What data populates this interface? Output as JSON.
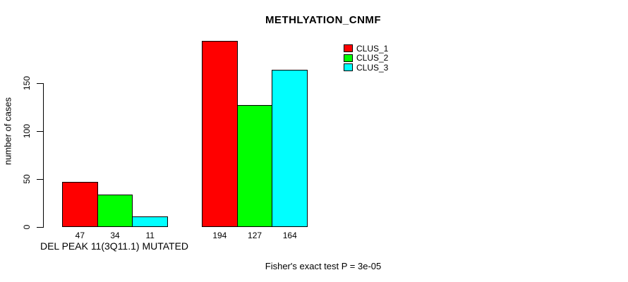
{
  "page": {
    "background_color": "#ffffff",
    "text_color": "#000000"
  },
  "chart_data": {
    "type": "bar",
    "title": "METHLYATION_CNMF",
    "ylabel": "number of cases",
    "xlabel": "",
    "ylim": [
      0,
      200
    ],
    "yticks": [
      0,
      50,
      100,
      150
    ],
    "grid": false,
    "legend_position": "top-right-inside",
    "bar_outline_color": "#000000",
    "categories": [
      "DEL PEAK 11(3Q11.1) MUTATED",
      ""
    ],
    "series": [
      {
        "name": "CLUS_1",
        "color": "#ff0000",
        "values": [
          47,
          194
        ]
      },
      {
        "name": "CLUS_2",
        "color": "#00ff00",
        "values": [
          34,
          127
        ]
      },
      {
        "name": "CLUS_3",
        "color": "#00ffff",
        "values": [
          11,
          164
        ]
      }
    ],
    "footnote": "Fisher's exact test P = 3e-05"
  }
}
